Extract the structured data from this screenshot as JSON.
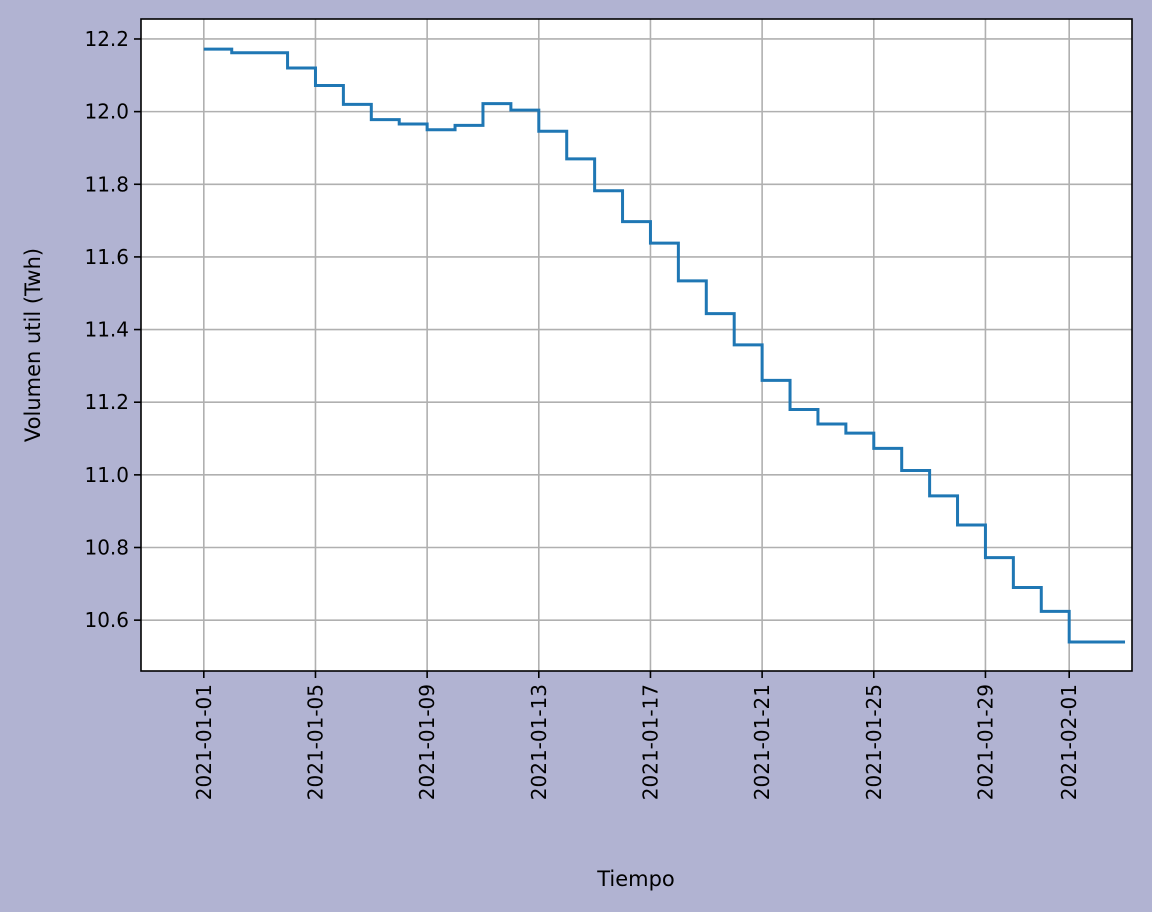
{
  "colors": {
    "figure_background": "#b1b3d2",
    "plot_background": "#ffffff",
    "series_line": "#1f77b4",
    "grid": "#b0b0b0"
  },
  "chart_data": {
    "type": "line",
    "step": true,
    "title": "",
    "xlabel": "Tiempo",
    "ylabel": "Volumen util (Twh)",
    "grid": true,
    "xlim": [
      "2020-12-29T18:00",
      "2021-02-03T06:00"
    ],
    "ylim": [
      10.46,
      12.255
    ],
    "xticks": [
      "2021-01-01",
      "2021-01-05",
      "2021-01-09",
      "2021-01-13",
      "2021-01-17",
      "2021-01-21",
      "2021-01-25",
      "2021-01-29",
      "2021-02-01"
    ],
    "yticks": [
      10.6,
      10.8,
      11.0,
      11.2,
      11.4,
      11.6,
      11.8,
      12.0,
      12.2
    ],
    "ytick_labels": [
      "10.6",
      "10.8",
      "11.0",
      "11.2",
      "11.4",
      "11.6",
      "11.8",
      "12.0",
      "12.2"
    ],
    "series": [
      {
        "x": [
          "2021-01-01",
          "2021-01-02",
          "2021-01-03",
          "2021-01-04",
          "2021-01-05",
          "2021-01-06",
          "2021-01-07",
          "2021-01-08",
          "2021-01-09",
          "2021-01-10",
          "2021-01-11",
          "2021-01-12",
          "2021-01-13",
          "2021-01-14",
          "2021-01-15",
          "2021-01-16",
          "2021-01-17",
          "2021-01-18",
          "2021-01-19",
          "2021-01-20",
          "2021-01-21",
          "2021-01-22",
          "2021-01-23",
          "2021-01-24",
          "2021-01-25",
          "2021-01-26",
          "2021-01-27",
          "2021-01-28",
          "2021-01-29",
          "2021-01-30",
          "2021-01-31",
          "2021-02-01",
          "2021-02-02"
        ],
        "values": [
          12.172,
          12.162,
          12.162,
          12.12,
          12.072,
          12.02,
          11.978,
          11.966,
          11.95,
          11.962,
          12.022,
          12.004,
          11.946,
          11.87,
          11.782,
          11.697,
          11.638,
          11.534,
          11.444,
          11.358,
          11.26,
          11.18,
          11.14,
          11.115,
          11.073,
          11.012,
          10.942,
          10.862,
          10.772,
          10.69,
          10.624,
          10.54,
          10.54
        ]
      }
    ]
  }
}
